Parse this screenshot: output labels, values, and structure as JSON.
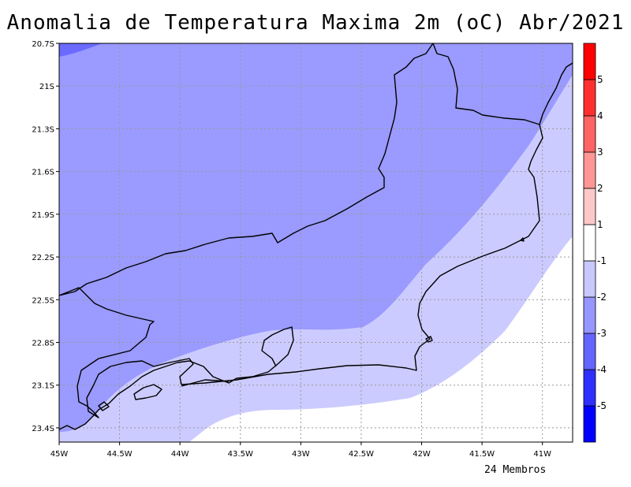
{
  "title": "Anomalia de Temperatura Maxima 2m (oC) Abr/2021",
  "footer": "24 Membros",
  "map": {
    "lon_range": [
      -45.0,
      -40.75
    ],
    "lat_range": [
      -23.5,
      -20.7
    ],
    "x_ticks": [
      {
        "lon": -45.0,
        "label": "45W"
      },
      {
        "lon": -44.5,
        "label": "44.5W"
      },
      {
        "lon": -44.0,
        "label": "44W"
      },
      {
        "lon": -43.5,
        "label": "43.5W"
      },
      {
        "lon": -43.0,
        "label": "43W"
      },
      {
        "lon": -42.5,
        "label": "42.5W"
      },
      {
        "lon": -42.0,
        "label": "42W"
      },
      {
        "lon": -41.5,
        "label": "41.5W"
      },
      {
        "lon": -41.0,
        "label": "41W"
      }
    ],
    "y_ticks": [
      {
        "lat": -20.7,
        "label": "20.7S"
      },
      {
        "lat": -21.0,
        "label": "21S"
      },
      {
        "lat": -21.3,
        "label": "21.3S"
      },
      {
        "lat": -21.6,
        "label": "21.6S"
      },
      {
        "lat": -21.9,
        "label": "21.9S"
      },
      {
        "lat": -22.2,
        "label": "22.2S"
      },
      {
        "lat": -22.5,
        "label": "22.5S"
      },
      {
        "lat": -22.8,
        "label": "22.8S"
      },
      {
        "lat": -23.1,
        "label": "23.1S"
      },
      {
        "lat": -23.4,
        "label": "23.4S"
      }
    ],
    "gridlines": "dotted",
    "shading": [
      {
        "range": "-3 to -2",
        "color": "#9a9aff"
      },
      {
        "range": "-2 to -1",
        "color": "#cbcbff"
      },
      {
        "range": "-1 to 1",
        "color": "#ffffff"
      },
      {
        "range": "-4 to -3",
        "color": "#6a6aff"
      }
    ]
  },
  "colorbar": {
    "colors": [
      "#0000ff",
      "#2f2fff",
      "#6464ff",
      "#9696ff",
      "#c8c8ff",
      "#ffffff",
      "#ffc8c8",
      "#ff9696",
      "#ff6464",
      "#ff2f2f",
      "#ff0000"
    ],
    "labels": [
      "-5",
      "-4",
      "-3",
      "-2",
      "-1",
      "1",
      "2",
      "3",
      "4",
      "5"
    ]
  }
}
